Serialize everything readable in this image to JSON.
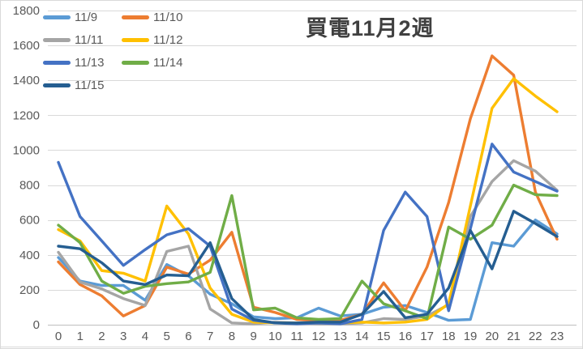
{
  "chart_data": {
    "type": "line",
    "title": "買電11月2週",
    "xlabel": "",
    "ylabel": "",
    "ylim": [
      0,
      1800
    ],
    "ytick_step": 200,
    "grid": true,
    "legend_position": "top-left",
    "axis_color": "#595959",
    "gridline_color": "#d9d9d9",
    "axisline_color": "#bfbfbf",
    "yticks": [
      "1800",
      "1600",
      "1400",
      "1200",
      "1000",
      "800",
      "600",
      "400",
      "200",
      "0"
    ],
    "xticks": [
      "0",
      "1",
      "2",
      "3",
      "4",
      "5",
      "6",
      "7",
      "8",
      "9",
      "10",
      "11",
      "12",
      "13",
      "14",
      "15",
      "16",
      "17",
      "18",
      "19",
      "20",
      "21",
      "22",
      "23"
    ],
    "x": [
      0,
      1,
      2,
      3,
      4,
      5,
      6,
      7,
      8,
      9,
      10,
      11,
      12,
      13,
      14,
      15,
      16,
      17,
      18,
      19,
      20,
      21,
      22,
      23
    ],
    "series": [
      {
        "name": "11/9",
        "color": "#5B9BD5",
        "values": [
          385,
          250,
          225,
          225,
          140,
          345,
          280,
          175,
          120,
          45,
          35,
          40,
          95,
          50,
          60,
          100,
          110,
          70,
          25,
          30,
          470,
          450,
          600,
          520
        ]
      },
      {
        "name": "11/10",
        "color": "#ED7D31",
        "values": [
          360,
          230,
          165,
          50,
          110,
          330,
          290,
          370,
          530,
          100,
          70,
          30,
          25,
          25,
          60,
          240,
          80,
          330,
          700,
          1180,
          1540,
          1430,
          760,
          490
        ]
      },
      {
        "name": "11/11",
        "color": "#A5A5A5",
        "values": [
          415,
          245,
          205,
          150,
          110,
          420,
          450,
          90,
          10,
          5,
          15,
          10,
          5,
          5,
          10,
          35,
          30,
          50,
          115,
          620,
          820,
          940,
          880,
          770
        ]
      },
      {
        "name": "11/12",
        "color": "#FFC000",
        "values": [
          545,
          480,
          310,
          295,
          250,
          680,
          520,
          210,
          60,
          15,
          10,
          10,
          10,
          10,
          15,
          10,
          15,
          30,
          120,
          680,
          1240,
          1410,
          1310,
          1220
        ]
      },
      {
        "name": "11/13",
        "color": "#4472C4",
        "values": [
          930,
          620,
          480,
          340,
          430,
          515,
          550,
          450,
          90,
          25,
          10,
          5,
          10,
          5,
          30,
          540,
          760,
          620,
          80,
          550,
          1035,
          875,
          820,
          765
        ]
      },
      {
        "name": "11/14",
        "color": "#70AD47",
        "values": [
          570,
          470,
          250,
          180,
          220,
          235,
          245,
          300,
          740,
          85,
          95,
          40,
          30,
          35,
          250,
          120,
          80,
          35,
          560,
          490,
          570,
          800,
          745,
          740
        ]
      },
      {
        "name": "11/15",
        "color": "#255E91",
        "values": [
          450,
          435,
          355,
          250,
          230,
          285,
          280,
          470,
          150,
          30,
          10,
          10,
          15,
          15,
          60,
          190,
          40,
          60,
          210,
          540,
          320,
          650,
          580,
          505
        ]
      }
    ]
  }
}
